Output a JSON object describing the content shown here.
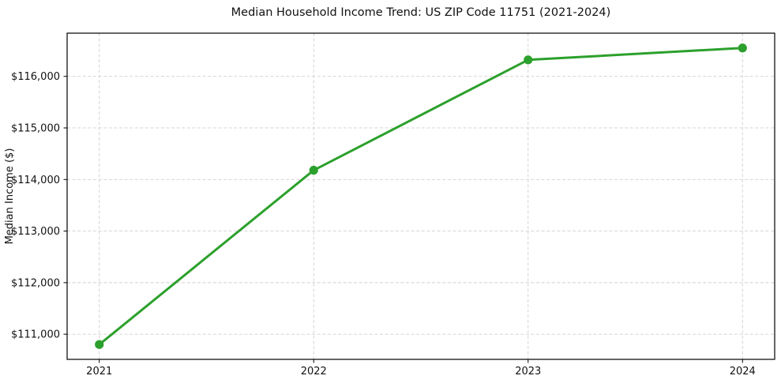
{
  "chart_data": {
    "type": "line",
    "title": "Median Household Income Trend: US ZIP Code 11751 (2021-2024)",
    "xlabel": "",
    "ylabel": "Median Income ($)",
    "x": [
      2021,
      2022,
      2023,
      2024
    ],
    "x_tick_labels": [
      "2021",
      "2022",
      "2023",
      "2024"
    ],
    "series": [
      {
        "name": "Median household income",
        "values": [
          110800,
          114180,
          116320,
          116550
        ],
        "color": "#2ca02c",
        "marker": "circle"
      }
    ],
    "y_ticks": [
      {
        "value": 111000,
        "label": "$111,000"
      },
      {
        "value": 112000,
        "label": "$112,000"
      },
      {
        "value": 113000,
        "label": "$113,000"
      },
      {
        "value": 114000,
        "label": "$114,000"
      },
      {
        "value": 115000,
        "label": "$115,000"
      },
      {
        "value": 116000,
        "label": "$116,000"
      }
    ],
    "xlim": [
      2020.85,
      2024.15
    ],
    "ylim": [
      110512.5,
      116837.5
    ],
    "grid": "dashed-both",
    "grid_color": "#cfcfcf",
    "axis_color": "#000000",
    "background_color": "#ffffff",
    "legend_position": "none"
  }
}
